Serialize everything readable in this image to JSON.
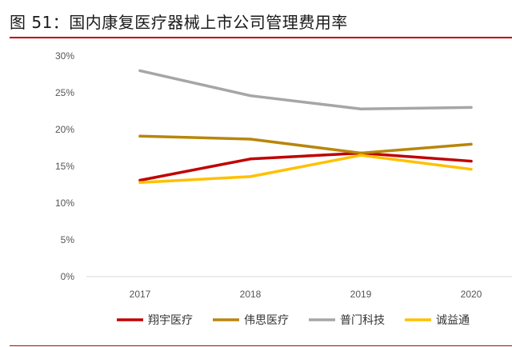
{
  "figure": {
    "title": "图 51：国内康复医疗器械上市公司管理费用率"
  },
  "chart_data": {
    "type": "line",
    "title": "",
    "xlabel": "",
    "ylabel": "",
    "x": [
      "2017",
      "2018",
      "2019",
      "2020"
    ],
    "ylim": [
      0,
      30
    ],
    "yticks": [
      "0%",
      "5%",
      "10%",
      "15%",
      "20%",
      "25%",
      "30%"
    ],
    "grid": false,
    "legend_position": "bottom",
    "series": [
      {
        "name": "翔宇医疗",
        "color": "#c00000",
        "values": [
          13.1,
          16.0,
          16.8,
          15.7
        ]
      },
      {
        "name": "伟思医疗",
        "color": "#b8860b",
        "values": [
          19.1,
          18.7,
          16.8,
          18.0
        ]
      },
      {
        "name": "普门科技",
        "color": "#a6a6a6",
        "values": [
          28.0,
          24.6,
          22.8,
          23.0
        ]
      },
      {
        "name": "诚益通",
        "color": "#ffc000",
        "values": [
          12.8,
          13.6,
          16.5,
          14.6
        ]
      }
    ]
  }
}
